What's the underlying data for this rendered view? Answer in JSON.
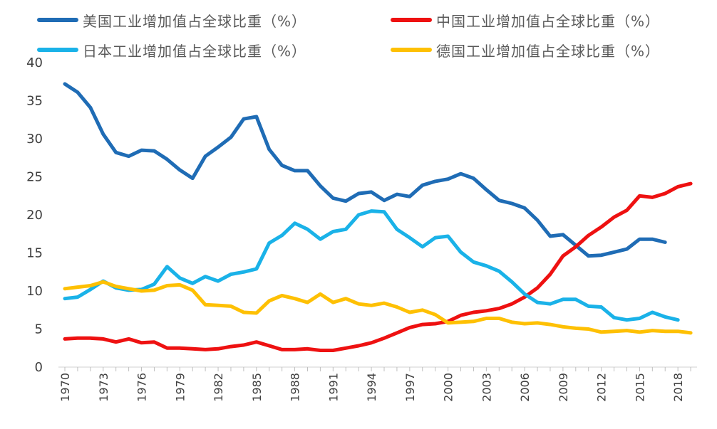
{
  "chart_data": {
    "type": "line",
    "ylim": [
      0,
      40
    ],
    "yticks": [
      0,
      5,
      10,
      15,
      20,
      25,
      30,
      35,
      40
    ],
    "xlim": [
      1970,
      2019
    ],
    "xticks": [
      1970,
      1973,
      1976,
      1979,
      1982,
      1985,
      1988,
      1991,
      1994,
      1997,
      2000,
      2003,
      2006,
      2009,
      2012,
      2015,
      2018
    ],
    "grid": false,
    "legend_position": "top",
    "series": [
      {
        "name": "美国工业增加值占全球比重（%）",
        "color": "#1f6cb5",
        "x": [
          1970,
          1971,
          1972,
          1973,
          1974,
          1975,
          1976,
          1977,
          1978,
          1979,
          1980,
          1981,
          1982,
          1983,
          1984,
          1985,
          1986,
          1987,
          1988,
          1989,
          1990,
          1991,
          1992,
          1993,
          1994,
          1995,
          1996,
          1997,
          1998,
          1999,
          2000,
          2001,
          2002,
          2003,
          2004,
          2005,
          2006,
          2007,
          2008,
          2009,
          2010,
          2011,
          2012,
          2013,
          2014,
          2015,
          2016,
          2017
        ],
        "values": [
          37.2,
          36.1,
          34.1,
          30.6,
          28.2,
          27.7,
          28.5,
          28.4,
          27.3,
          25.9,
          24.8,
          27.7,
          28.9,
          30.2,
          32.6,
          32.9,
          28.6,
          26.5,
          25.8,
          25.8,
          23.8,
          22.2,
          21.8,
          22.8,
          23.0,
          21.9,
          22.7,
          22.4,
          23.9,
          24.4,
          24.7,
          25.4,
          24.8,
          23.3,
          21.9,
          21.5,
          20.9,
          19.3,
          17.2,
          17.4,
          16.0,
          14.6,
          14.7,
          15.1,
          15.5,
          16.8,
          16.8,
          16.4
        ]
      },
      {
        "name": "中国工业增加值占全球比重（%）",
        "color": "#ee1111",
        "x": [
          1970,
          1971,
          1972,
          1973,
          1974,
          1975,
          1976,
          1977,
          1978,
          1979,
          1980,
          1981,
          1982,
          1983,
          1984,
          1985,
          1986,
          1987,
          1988,
          1989,
          1990,
          1991,
          1992,
          1993,
          1994,
          1995,
          1996,
          1997,
          1998,
          1999,
          2000,
          2001,
          2002,
          2003,
          2004,
          2005,
          2006,
          2007,
          2008,
          2009,
          2010,
          2011,
          2012,
          2013,
          2014,
          2015,
          2016,
          2017,
          2018,
          2019
        ],
        "values": [
          3.7,
          3.8,
          3.8,
          3.7,
          3.3,
          3.7,
          3.2,
          3.3,
          2.5,
          2.5,
          2.4,
          2.3,
          2.4,
          2.7,
          2.9,
          3.3,
          2.8,
          2.3,
          2.3,
          2.4,
          2.2,
          2.2,
          2.5,
          2.8,
          3.2,
          3.8,
          4.5,
          5.2,
          5.6,
          5.7,
          6.0,
          6.8,
          7.2,
          7.4,
          7.7,
          8.3,
          9.2,
          10.4,
          12.2,
          14.6,
          15.8,
          17.3,
          18.4,
          19.7,
          20.6,
          22.5,
          22.3,
          22.8,
          23.7,
          24.1
        ]
      },
      {
        "name": "日本工业增加值占全球比重（%）",
        "color": "#1ab2e8",
        "x": [
          1970,
          1971,
          1972,
          1973,
          1974,
          1975,
          1976,
          1977,
          1978,
          1979,
          1980,
          1981,
          1982,
          1983,
          1984,
          1985,
          1986,
          1987,
          1988,
          1989,
          1990,
          1991,
          1992,
          1993,
          1994,
          1995,
          1996,
          1997,
          1998,
          1999,
          2000,
          2001,
          2002,
          2003,
          2004,
          2005,
          2006,
          2007,
          2008,
          2009,
          2010,
          2011,
          2012,
          2013,
          2014,
          2015,
          2016,
          2017,
          2018
        ],
        "values": [
          9.0,
          9.2,
          10.2,
          11.3,
          10.4,
          10.1,
          10.2,
          10.9,
          13.2,
          11.7,
          11.0,
          11.9,
          11.3,
          12.2,
          12.5,
          12.9,
          16.3,
          17.3,
          18.9,
          18.1,
          16.8,
          17.8,
          18.1,
          20.0,
          20.5,
          20.4,
          18.1,
          17.0,
          15.8,
          17.0,
          17.2,
          15.1,
          13.8,
          13.3,
          12.6,
          11.2,
          9.6,
          8.5,
          8.3,
          8.9,
          8.9,
          8.0,
          7.9,
          6.5,
          6.2,
          6.4,
          7.2,
          6.6,
          6.2
        ]
      },
      {
        "name": "德国工业增加值占全球比重（%）",
        "color": "#fec003",
        "x": [
          1970,
          1971,
          1972,
          1973,
          1974,
          1975,
          1976,
          1977,
          1978,
          1979,
          1980,
          1981,
          1982,
          1983,
          1984,
          1985,
          1986,
          1987,
          1988,
          1989,
          1990,
          1991,
          1992,
          1993,
          1994,
          1995,
          1996,
          1997,
          1998,
          1999,
          2000,
          2001,
          2002,
          2003,
          2004,
          2005,
          2006,
          2007,
          2008,
          2009,
          2010,
          2011,
          2012,
          2013,
          2014,
          2015,
          2016,
          2017,
          2018,
          2019
        ],
        "values": [
          10.3,
          10.5,
          10.7,
          11.2,
          10.6,
          10.3,
          10.0,
          10.1,
          10.7,
          10.8,
          10.1,
          8.2,
          8.1,
          8.0,
          7.2,
          7.1,
          8.7,
          9.4,
          9.0,
          8.5,
          9.6,
          8.5,
          9.0,
          8.3,
          8.1,
          8.4,
          7.9,
          7.2,
          7.5,
          6.9,
          5.8,
          5.9,
          6.0,
          6.4,
          6.4,
          5.9,
          5.7,
          5.8,
          5.6,
          5.3,
          5.1,
          5.0,
          4.6,
          4.7,
          4.8,
          4.6,
          4.8,
          4.7,
          4.7,
          4.5
        ]
      }
    ]
  }
}
